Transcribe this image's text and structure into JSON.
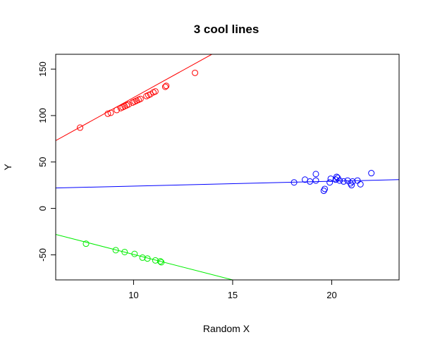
{
  "chart_data": {
    "type": "scatter",
    "title": "3 cool lines",
    "xlabel": "Random X",
    "ylabel": "Y",
    "xlim": [
      6.07,
      23.4
    ],
    "ylim": [
      -77,
      166
    ],
    "x_ticks": [
      10,
      15,
      20
    ],
    "y_ticks": [
      -50,
      0,
      50,
      100,
      150
    ],
    "grid": false,
    "legend": "none",
    "series": [
      {
        "color": "#ff0000",
        "marker": "open-circle",
        "points": [
          {
            "x": 7.3,
            "y": 87
          },
          {
            "x": 8.7,
            "y": 102
          },
          {
            "x": 8.85,
            "y": 103
          },
          {
            "x": 9.15,
            "y": 106
          },
          {
            "x": 9.35,
            "y": 108
          },
          {
            "x": 9.45,
            "y": 109
          },
          {
            "x": 9.55,
            "y": 110
          },
          {
            "x": 9.65,
            "y": 111
          },
          {
            "x": 9.75,
            "y": 112
          },
          {
            "x": 9.95,
            "y": 114
          },
          {
            "x": 10.05,
            "y": 115
          },
          {
            "x": 10.15,
            "y": 116
          },
          {
            "x": 10.25,
            "y": 117
          },
          {
            "x": 10.35,
            "y": 118
          },
          {
            "x": 10.65,
            "y": 121
          },
          {
            "x": 10.75,
            "y": 122
          },
          {
            "x": 10.85,
            "y": 123
          },
          {
            "x": 11.0,
            "y": 125
          },
          {
            "x": 11.1,
            "y": 126
          },
          {
            "x": 11.6,
            "y": 131
          },
          {
            "x": 11.65,
            "y": 132
          },
          {
            "x": 13.1,
            "y": 146
          }
        ],
        "fit_line": {
          "x": [
            6.07,
            13.95
          ],
          "y": [
            73,
            166
          ]
        }
      },
      {
        "color": "#0000ff",
        "marker": "open-circle",
        "points": [
          {
            "x": 18.1,
            "y": 28
          },
          {
            "x": 18.65,
            "y": 31
          },
          {
            "x": 18.9,
            "y": 29
          },
          {
            "x": 19.2,
            "y": 37
          },
          {
            "x": 19.2,
            "y": 30
          },
          {
            "x": 19.6,
            "y": 19
          },
          {
            "x": 19.65,
            "y": 21
          },
          {
            "x": 19.9,
            "y": 28
          },
          {
            "x": 19.95,
            "y": 32
          },
          {
            "x": 20.2,
            "y": 31
          },
          {
            "x": 20.25,
            "y": 34
          },
          {
            "x": 20.3,
            "y": 33
          },
          {
            "x": 20.4,
            "y": 30
          },
          {
            "x": 20.6,
            "y": 29
          },
          {
            "x": 20.8,
            "y": 30
          },
          {
            "x": 20.95,
            "y": 27
          },
          {
            "x": 21.0,
            "y": 25
          },
          {
            "x": 21.05,
            "y": 29
          },
          {
            "x": 21.3,
            "y": 30
          },
          {
            "x": 21.45,
            "y": 26
          },
          {
            "x": 22.0,
            "y": 38
          }
        ],
        "fit_line": {
          "x": [
            6.07,
            23.4
          ],
          "y": [
            22,
            31
          ]
        }
      },
      {
        "color": "#00ee00",
        "marker": "open-circle",
        "points": [
          {
            "x": 7.6,
            "y": -38
          },
          {
            "x": 9.1,
            "y": -45
          },
          {
            "x": 9.55,
            "y": -47
          },
          {
            "x": 10.05,
            "y": -49
          },
          {
            "x": 10.45,
            "y": -53
          },
          {
            "x": 10.7,
            "y": -54
          },
          {
            "x": 11.1,
            "y": -56
          },
          {
            "x": 11.35,
            "y": -57
          },
          {
            "x": 11.4,
            "y": -58
          }
        ],
        "fit_line": {
          "x": [
            6.07,
            15.0
          ],
          "y": [
            -28,
            -77
          ]
        }
      }
    ]
  }
}
